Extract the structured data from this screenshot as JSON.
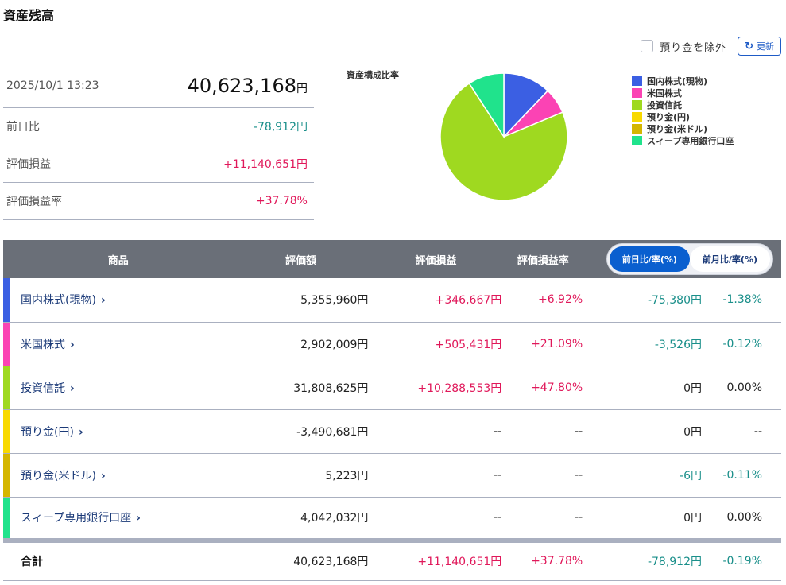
{
  "page": {
    "title": "資産残高"
  },
  "summary": {
    "datetime": "2025/10/1 13:23",
    "total_value": "40,623,168",
    "total_unit": "円",
    "rows": [
      {
        "label": "前日比",
        "value": "-78,912円",
        "tone": "neg"
      },
      {
        "label": "評価損益",
        "value": "+11,140,651円",
        "tone": "pos"
      },
      {
        "label": "評価損益率",
        "value": "+37.78%",
        "tone": "pos"
      }
    ]
  },
  "controls": {
    "exclude_deposit_label": "預り金を除外",
    "exclude_deposit_checked": false,
    "refresh_label": "更新"
  },
  "chart_data": {
    "type": "pie",
    "title": "資産構成比率",
    "legend_position": "right",
    "slices": [
      {
        "label": "国内株式(現物)",
        "value": 5355960,
        "color": "#3b5fe3"
      },
      {
        "label": "米国株式",
        "value": 2902009,
        "color": "#fb43b4"
      },
      {
        "label": "投資信託",
        "value": 31808625,
        "color": "#9fd920"
      },
      {
        "label": "預り金(円)",
        "value": 0,
        "color": "#f8d900"
      },
      {
        "label": "預り金(米ドル)",
        "value": 5223,
        "color": "#d4b600"
      },
      {
        "label": "スィープ専用銀行口座",
        "value": 4042032,
        "color": "#20e38c"
      }
    ]
  },
  "table": {
    "headers": {
      "product": "商品",
      "value": "評価額",
      "pl": "評価損益",
      "pl_rate": "評価損益率"
    },
    "toggle": {
      "active": "前日比/率(%)",
      "inactive": "前月比/率(%)"
    },
    "rows": [
      {
        "name": "国内株式(現物)",
        "color": "#3b5fe3",
        "value": "5,355,960円",
        "pl": "+346,667円",
        "pl_tone": "pos",
        "pl_rate": "+6.92%",
        "pl_rate_tone": "pos",
        "chg": "-75,380円",
        "chg_tone": "neg",
        "chg_rate": "-1.38%",
        "chg_rate_tone": "neg"
      },
      {
        "name": "米国株式",
        "color": "#fb43b4",
        "value": "2,902,009円",
        "pl": "+505,431円",
        "pl_tone": "pos",
        "pl_rate": "+21.09%",
        "pl_rate_tone": "pos",
        "chg": "-3,526円",
        "chg_tone": "neg",
        "chg_rate": "-0.12%",
        "chg_rate_tone": "neg"
      },
      {
        "name": "投資信託",
        "color": "#9fd920",
        "value": "31,808,625円",
        "pl": "+10,288,553円",
        "pl_tone": "pos",
        "pl_rate": "+47.80%",
        "pl_rate_tone": "pos",
        "chg": "0円",
        "chg_tone": "zero",
        "chg_rate": "0.00%",
        "chg_rate_tone": "zero"
      },
      {
        "name": "預り金(円)",
        "color": "#f8d900",
        "value": "-3,490,681円",
        "pl": "--",
        "pl_tone": "zero",
        "pl_rate": "--",
        "pl_rate_tone": "zero",
        "chg": "0円",
        "chg_tone": "zero",
        "chg_rate": "--",
        "chg_rate_tone": "zero"
      },
      {
        "name": "預り金(米ドル)",
        "color": "#d4b600",
        "value": "5,223円",
        "pl": "--",
        "pl_tone": "zero",
        "pl_rate": "--",
        "pl_rate_tone": "zero",
        "chg": "-6円",
        "chg_tone": "neg",
        "chg_rate": "-0.11%",
        "chg_rate_tone": "neg"
      },
      {
        "name": "スィープ専用銀行口座",
        "color": "#20e38c",
        "value": "4,042,032円",
        "pl": "--",
        "pl_tone": "zero",
        "pl_rate": "--",
        "pl_rate_tone": "zero",
        "chg": "0円",
        "chg_tone": "zero",
        "chg_rate": "0.00%",
        "chg_rate_tone": "zero"
      }
    ],
    "total": {
      "label": "合計",
      "value": "40,623,168円",
      "pl": "+11,140,651円",
      "pl_rate": "+37.78%",
      "chg": "-78,912円",
      "chg_rate": "-0.19%"
    },
    "chevron": "›"
  }
}
